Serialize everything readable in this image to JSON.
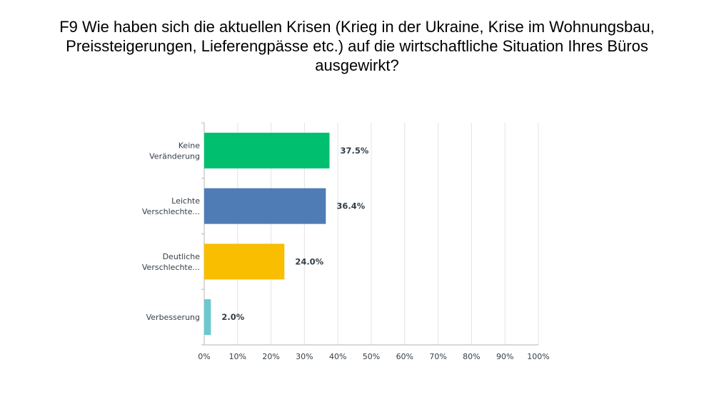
{
  "title": "F9 Wie haben sich die aktuellen Krisen (Krieg in der Ukraine, Krise im Wohnungsbau, Preissteigerungen, Lieferengpässe etc.) auf die wirtschaftliche Situation Ihres Büros ausgewirkt?",
  "chart_data": {
    "type": "bar",
    "orientation": "horizontal",
    "title": "F9 Wie haben sich die aktuellen Krisen (Krieg in der Ukraine, Krise im Wohnungsbau, Preissteigerungen, Lieferengpässe etc.) auf die wirtschaftliche Situation Ihres Büros ausgewirkt?",
    "categories": [
      [
        "Keine",
        "Veränderung"
      ],
      [
        "Leichte",
        "Verschlechte..."
      ],
      [
        "Deutliche",
        "Verschlechte..."
      ],
      [
        "Verbesserung"
      ]
    ],
    "values": [
      37.5,
      36.4,
      24.0,
      2.0
    ],
    "value_labels": [
      "37.5%",
      "36.4%",
      "24.0%",
      "2.0%"
    ],
    "colors": [
      "#00bf6f",
      "#507cb6",
      "#f9be00",
      "#6bc8cd"
    ],
    "xlim": [
      0,
      100
    ],
    "xticks": [
      "0%",
      "10%",
      "20%",
      "30%",
      "40%",
      "50%",
      "60%",
      "70%",
      "80%",
      "90%",
      "100%"
    ],
    "grid": true
  }
}
